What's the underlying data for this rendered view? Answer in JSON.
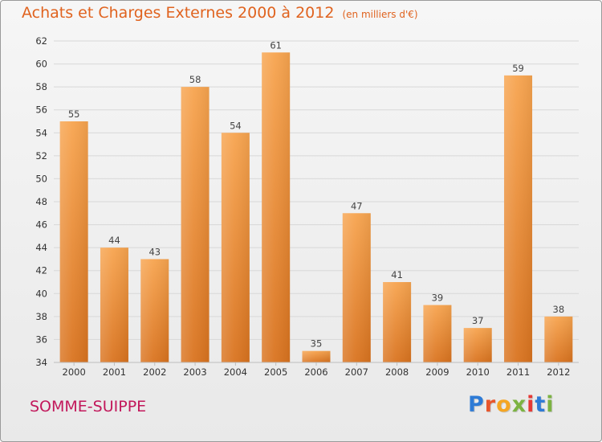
{
  "header": {
    "title": "Achats et Charges Externes 2000 à 2012",
    "subtitle": "(en milliers d'€)"
  },
  "footer": {
    "commune": "SOMME-SUIPPE",
    "logo": [
      "P",
      "r",
      "o",
      "x",
      "i",
      "t",
      "i"
    ]
  },
  "colors": {
    "title": "#e0631f",
    "commune": "#c2185b",
    "bar_top": "#f7a44f",
    "bar_bottom": "#d9731f",
    "grid": "#d8d8d8",
    "logo": [
      "#2e7bd6",
      "#e8562c",
      "#f5a623",
      "#7cb342",
      "#e53935",
      "#2e7bd6",
      "#7cb342"
    ]
  },
  "chart_data": {
    "type": "bar",
    "categories": [
      "2000",
      "2001",
      "2002",
      "2003",
      "2004",
      "2005",
      "2006",
      "2007",
      "2008",
      "2009",
      "2010",
      "2011",
      "2012"
    ],
    "values": [
      55,
      44,
      43,
      58,
      54,
      61,
      35,
      47,
      41,
      39,
      37,
      59,
      38
    ],
    "ylim": [
      34,
      62
    ],
    "yticks": [
      34,
      36,
      38,
      40,
      42,
      44,
      46,
      48,
      50,
      52,
      54,
      56,
      58,
      60,
      62
    ],
    "grid": true,
    "legend": "none"
  }
}
